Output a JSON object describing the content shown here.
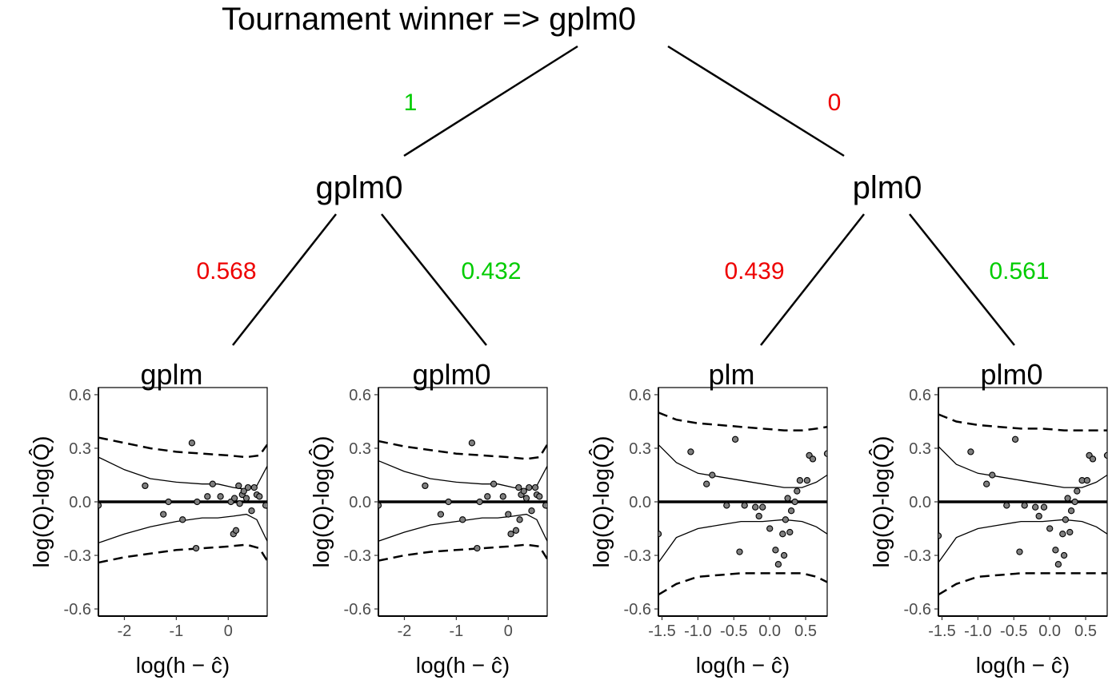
{
  "tree": {
    "title": "Tournament winner  =>  gplm0",
    "nodes": {
      "left": "gplm0",
      "right": "plm0"
    },
    "edge_labels": {
      "root_left": {
        "text": "1",
        "color": "#00cc00"
      },
      "root_right": {
        "text": "0",
        "color": "#ee0000"
      },
      "left_left": {
        "text": "0.568",
        "color": "#ee0000"
      },
      "left_right": {
        "text": "0.432",
        "color": "#00cc00"
      },
      "right_left": {
        "text": "0.439",
        "color": "#ee0000"
      },
      "right_right": {
        "text": "0.561",
        "color": "#00cc00"
      }
    }
  },
  "chart_data": [
    {
      "type": "scatter",
      "title": "gplm",
      "xlabel": "log(h − ĉ)",
      "ylabel": "log(Q)-log(Q̂)",
      "xlim": [
        -2.5,
        0.75
      ],
      "ylim": [
        -0.64,
        0.64
      ],
      "xticks": [
        -2,
        -1,
        0
      ],
      "yticks": [
        -0.6,
        -0.3,
        0.0,
        0.3,
        0.6
      ],
      "ytick_labels": [
        "-0.6",
        "-0.3",
        "0.0",
        "0.3",
        "0.6"
      ],
      "points": [
        [
          -2.5,
          -0.02
        ],
        [
          -1.6,
          0.09
        ],
        [
          -1.25,
          -0.07
        ],
        [
          -1.15,
          0.0
        ],
        [
          -0.88,
          -0.1
        ],
        [
          -0.7,
          0.33
        ],
        [
          -0.62,
          -0.26
        ],
        [
          -0.6,
          0.0
        ],
        [
          -0.4,
          0.03
        ],
        [
          -0.3,
          0.1
        ],
        [
          -0.15,
          0.03
        ],
        [
          0.05,
          0.0
        ],
        [
          0.12,
          0.02
        ],
        [
          0.1,
          -0.18
        ],
        [
          0.15,
          -0.16
        ],
        [
          0.2,
          0.09
        ],
        [
          0.22,
          -0.01
        ],
        [
          0.27,
          0.04
        ],
        [
          0.3,
          0.06
        ],
        [
          0.35,
          0.02
        ],
        [
          0.38,
          0.08
        ],
        [
          0.45,
          -0.05
        ],
        [
          0.5,
          0.08
        ],
        [
          0.55,
          0.04
        ],
        [
          0.6,
          0.03
        ],
        [
          0.72,
          -0.02
        ]
      ],
      "mean_upper": [
        [
          -2.5,
          0.25
        ],
        [
          -2.0,
          0.18
        ],
        [
          -1.5,
          0.13
        ],
        [
          -1.0,
          0.11
        ],
        [
          -0.5,
          0.1
        ],
        [
          -0.2,
          0.1
        ],
        [
          0.1,
          0.08
        ],
        [
          0.35,
          0.07
        ],
        [
          0.55,
          0.09
        ],
        [
          0.75,
          0.2
        ]
      ],
      "mean_lower": [
        [
          -2.5,
          -0.23
        ],
        [
          -2.0,
          -0.18
        ],
        [
          -1.5,
          -0.14
        ],
        [
          -1.0,
          -0.11
        ],
        [
          -0.5,
          -0.09
        ],
        [
          -0.2,
          -0.09
        ],
        [
          0.1,
          -0.08
        ],
        [
          0.35,
          -0.07
        ],
        [
          0.55,
          -0.1
        ],
        [
          0.75,
          -0.22
        ]
      ],
      "pred_upper": [
        [
          -2.5,
          0.36
        ],
        [
          -2.0,
          0.33
        ],
        [
          -1.5,
          0.3
        ],
        [
          -1.0,
          0.28
        ],
        [
          -0.5,
          0.27
        ],
        [
          0.0,
          0.26
        ],
        [
          0.35,
          0.25
        ],
        [
          0.6,
          0.26
        ],
        [
          0.75,
          0.32
        ]
      ],
      "pred_lower": [
        [
          -2.5,
          -0.34
        ],
        [
          -2.0,
          -0.31
        ],
        [
          -1.5,
          -0.29
        ],
        [
          -1.0,
          -0.27
        ],
        [
          -0.5,
          -0.26
        ],
        [
          0.0,
          -0.25
        ],
        [
          0.35,
          -0.24
        ],
        [
          0.6,
          -0.26
        ],
        [
          0.75,
          -0.33
        ]
      ]
    },
    {
      "type": "scatter",
      "title": "gplm0",
      "xlabel": "log(h − ĉ)",
      "ylabel": "log(Q)-log(Q̂)",
      "xlim": [
        -2.5,
        0.75
      ],
      "ylim": [
        -0.64,
        0.64
      ],
      "xticks": [
        -2,
        -1,
        0
      ],
      "yticks": [
        -0.6,
        -0.3,
        0.0,
        0.3,
        0.6
      ],
      "ytick_labels": [
        "-0.6",
        "-0.3",
        "0.0",
        "0.3",
        "0.6"
      ],
      "points": [
        [
          -2.5,
          -0.02
        ],
        [
          -1.6,
          0.09
        ],
        [
          -1.3,
          -0.07
        ],
        [
          -1.15,
          0.0
        ],
        [
          -0.88,
          -0.1
        ],
        [
          -0.7,
          0.33
        ],
        [
          -0.6,
          -0.26
        ],
        [
          -0.55,
          0.0
        ],
        [
          -0.4,
          0.03
        ],
        [
          -0.28,
          0.1
        ],
        [
          -0.1,
          0.03
        ],
        [
          0.0,
          -0.07
        ],
        [
          0.05,
          -0.18
        ],
        [
          0.15,
          -0.16
        ],
        [
          0.2,
          0.08
        ],
        [
          0.22,
          -0.1
        ],
        [
          0.25,
          0.04
        ],
        [
          0.3,
          0.06
        ],
        [
          0.35,
          0.02
        ],
        [
          0.4,
          0.08
        ],
        [
          0.45,
          -0.05
        ],
        [
          0.52,
          0.08
        ],
        [
          0.55,
          0.04
        ],
        [
          0.6,
          0.03
        ],
        [
          0.72,
          -0.02
        ]
      ],
      "mean_upper": [
        [
          -2.5,
          0.23
        ],
        [
          -2.0,
          0.17
        ],
        [
          -1.5,
          0.13
        ],
        [
          -1.0,
          0.11
        ],
        [
          -0.5,
          0.1
        ],
        [
          -0.2,
          0.1
        ],
        [
          0.1,
          0.08
        ],
        [
          0.35,
          0.07
        ],
        [
          0.55,
          0.09
        ],
        [
          0.75,
          0.2
        ]
      ],
      "mean_lower": [
        [
          -2.5,
          -0.22
        ],
        [
          -2.0,
          -0.17
        ],
        [
          -1.5,
          -0.13
        ],
        [
          -1.0,
          -0.11
        ],
        [
          -0.5,
          -0.09
        ],
        [
          -0.2,
          -0.09
        ],
        [
          0.1,
          -0.08
        ],
        [
          0.35,
          -0.07
        ],
        [
          0.55,
          -0.1
        ],
        [
          0.75,
          -0.22
        ]
      ],
      "pred_upper": [
        [
          -2.5,
          0.34
        ],
        [
          -2.0,
          0.31
        ],
        [
          -1.5,
          0.29
        ],
        [
          -1.0,
          0.27
        ],
        [
          -0.5,
          0.26
        ],
        [
          0.0,
          0.25
        ],
        [
          0.35,
          0.24
        ],
        [
          0.6,
          0.25
        ],
        [
          0.75,
          0.32
        ]
      ],
      "pred_lower": [
        [
          -2.5,
          -0.33
        ],
        [
          -2.0,
          -0.3
        ],
        [
          -1.5,
          -0.28
        ],
        [
          -1.0,
          -0.27
        ],
        [
          -0.5,
          -0.26
        ],
        [
          0.0,
          -0.25
        ],
        [
          0.35,
          -0.24
        ],
        [
          0.6,
          -0.25
        ],
        [
          0.75,
          -0.32
        ]
      ]
    },
    {
      "type": "scatter",
      "title": "plm",
      "xlabel": "log(h − ĉ)",
      "ylabel": "log(Q)-log(Q̂)",
      "xlim": [
        -1.55,
        0.8
      ],
      "ylim": [
        -0.64,
        0.64
      ],
      "xticks": [
        -1.5,
        -1.0,
        -0.5,
        0.0,
        0.5
      ],
      "xtick_labels": [
        "-1.5",
        "-1.0",
        "-0.5",
        "0.0",
        "0.5"
      ],
      "yticks": [
        -0.6,
        -0.3,
        0.0,
        0.3,
        0.6
      ],
      "ytick_labels": [
        "-0.6",
        "-0.3",
        "0.0",
        "0.3",
        "0.6"
      ],
      "points": [
        [
          -1.55,
          -0.18
        ],
        [
          -1.1,
          0.28
        ],
        [
          -0.88,
          0.1
        ],
        [
          -0.8,
          0.15
        ],
        [
          -0.6,
          -0.02
        ],
        [
          -0.48,
          0.35
        ],
        [
          -0.42,
          -0.28
        ],
        [
          -0.35,
          -0.02
        ],
        [
          -0.2,
          -0.03
        ],
        [
          -0.15,
          -0.08
        ],
        [
          -0.1,
          -0.03
        ],
        [
          0.0,
          -0.15
        ],
        [
          0.08,
          -0.27
        ],
        [
          0.12,
          -0.35
        ],
        [
          0.18,
          -0.18
        ],
        [
          0.2,
          -0.3
        ],
        [
          0.22,
          -0.1
        ],
        [
          0.25,
          0.02
        ],
        [
          0.28,
          -0.17
        ],
        [
          0.3,
          -0.05
        ],
        [
          0.35,
          0.0
        ],
        [
          0.38,
          0.06
        ],
        [
          0.42,
          0.12
        ],
        [
          0.52,
          0.12
        ],
        [
          0.55,
          0.26
        ],
        [
          0.6,
          0.24
        ],
        [
          0.8,
          0.27
        ]
      ],
      "mean_upper": [
        [
          -1.55,
          0.32
        ],
        [
          -1.3,
          0.22
        ],
        [
          -1.0,
          0.16
        ],
        [
          -0.7,
          0.14
        ],
        [
          -0.4,
          0.12
        ],
        [
          -0.1,
          0.1
        ],
        [
          0.2,
          0.08
        ],
        [
          0.45,
          0.08
        ],
        [
          0.65,
          0.11
        ],
        [
          0.8,
          0.15
        ]
      ],
      "mean_lower": [
        [
          -1.55,
          -0.34
        ],
        [
          -1.3,
          -0.2
        ],
        [
          -1.0,
          -0.15
        ],
        [
          -0.7,
          -0.13
        ],
        [
          -0.4,
          -0.11
        ],
        [
          -0.1,
          -0.11
        ],
        [
          0.2,
          -0.1
        ],
        [
          0.45,
          -0.11
        ],
        [
          0.65,
          -0.14
        ],
        [
          0.8,
          -0.18
        ]
      ],
      "pred_upper": [
        [
          -1.55,
          0.5
        ],
        [
          -1.3,
          0.46
        ],
        [
          -1.0,
          0.44
        ],
        [
          -0.7,
          0.43
        ],
        [
          -0.4,
          0.42
        ],
        [
          -0.1,
          0.41
        ],
        [
          0.2,
          0.4
        ],
        [
          0.45,
          0.4
        ],
        [
          0.65,
          0.41
        ],
        [
          0.8,
          0.42
        ]
      ],
      "pred_lower": [
        [
          -1.55,
          -0.52
        ],
        [
          -1.3,
          -0.46
        ],
        [
          -1.0,
          -0.42
        ],
        [
          -0.7,
          -0.41
        ],
        [
          -0.4,
          -0.4
        ],
        [
          -0.1,
          -0.4
        ],
        [
          0.2,
          -0.4
        ],
        [
          0.45,
          -0.4
        ],
        [
          0.65,
          -0.42
        ],
        [
          0.8,
          -0.45
        ]
      ]
    },
    {
      "type": "scatter",
      "title": "plm0",
      "xlabel": "log(h − ĉ)",
      "ylabel": "log(Q)-log(Q̂)",
      "xlim": [
        -1.55,
        0.8
      ],
      "ylim": [
        -0.64,
        0.64
      ],
      "xticks": [
        -1.5,
        -1.0,
        -0.5,
        0.0,
        0.5
      ],
      "xtick_labels": [
        "-1.5",
        "-1.0",
        "-0.5",
        "0.0",
        "0.5"
      ],
      "yticks": [
        -0.6,
        -0.3,
        0.0,
        0.3,
        0.6
      ],
      "ytick_labels": [
        "-0.6",
        "-0.3",
        "0.0",
        "0.3",
        "0.6"
      ],
      "points": [
        [
          -1.55,
          -0.19
        ],
        [
          -1.1,
          0.28
        ],
        [
          -0.88,
          0.1
        ],
        [
          -0.8,
          0.15
        ],
        [
          -0.6,
          -0.02
        ],
        [
          -0.48,
          0.35
        ],
        [
          -0.42,
          -0.28
        ],
        [
          -0.35,
          -0.02
        ],
        [
          -0.2,
          -0.03
        ],
        [
          -0.15,
          -0.08
        ],
        [
          -0.08,
          -0.03
        ],
        [
          0.0,
          -0.15
        ],
        [
          0.08,
          -0.27
        ],
        [
          0.12,
          -0.35
        ],
        [
          0.18,
          -0.18
        ],
        [
          0.2,
          -0.3
        ],
        [
          0.22,
          -0.1
        ],
        [
          0.25,
          0.02
        ],
        [
          0.28,
          -0.17
        ],
        [
          0.3,
          -0.05
        ],
        [
          0.35,
          0.0
        ],
        [
          0.38,
          0.06
        ],
        [
          0.45,
          0.12
        ],
        [
          0.52,
          0.12
        ],
        [
          0.55,
          0.26
        ],
        [
          0.6,
          0.24
        ],
        [
          0.8,
          0.26
        ]
      ],
      "mean_upper": [
        [
          -1.55,
          0.31
        ],
        [
          -1.3,
          0.21
        ],
        [
          -1.0,
          0.16
        ],
        [
          -0.7,
          0.14
        ],
        [
          -0.4,
          0.12
        ],
        [
          -0.1,
          0.1
        ],
        [
          0.2,
          0.08
        ],
        [
          0.45,
          0.08
        ],
        [
          0.65,
          0.11
        ],
        [
          0.8,
          0.15
        ]
      ],
      "mean_lower": [
        [
          -1.55,
          -0.34
        ],
        [
          -1.3,
          -0.2
        ],
        [
          -1.0,
          -0.15
        ],
        [
          -0.7,
          -0.13
        ],
        [
          -0.4,
          -0.11
        ],
        [
          -0.1,
          -0.11
        ],
        [
          0.2,
          -0.1
        ],
        [
          0.45,
          -0.11
        ],
        [
          0.65,
          -0.14
        ],
        [
          0.8,
          -0.18
        ]
      ],
      "pred_upper": [
        [
          -1.55,
          0.49
        ],
        [
          -1.3,
          0.45
        ],
        [
          -1.0,
          0.43
        ],
        [
          -0.7,
          0.42
        ],
        [
          -0.4,
          0.41
        ],
        [
          -0.1,
          0.41
        ],
        [
          0.2,
          0.4
        ],
        [
          0.45,
          0.4
        ],
        [
          0.65,
          0.4
        ],
        [
          0.8,
          0.4
        ]
      ],
      "pred_lower": [
        [
          -1.55,
          -0.52
        ],
        [
          -1.3,
          -0.46
        ],
        [
          -1.0,
          -0.42
        ],
        [
          -0.7,
          -0.41
        ],
        [
          -0.4,
          -0.4
        ],
        [
          -0.1,
          -0.4
        ],
        [
          0.2,
          -0.4
        ],
        [
          0.45,
          -0.4
        ],
        [
          0.65,
          -0.4
        ],
        [
          0.8,
          -0.4
        ]
      ]
    }
  ]
}
